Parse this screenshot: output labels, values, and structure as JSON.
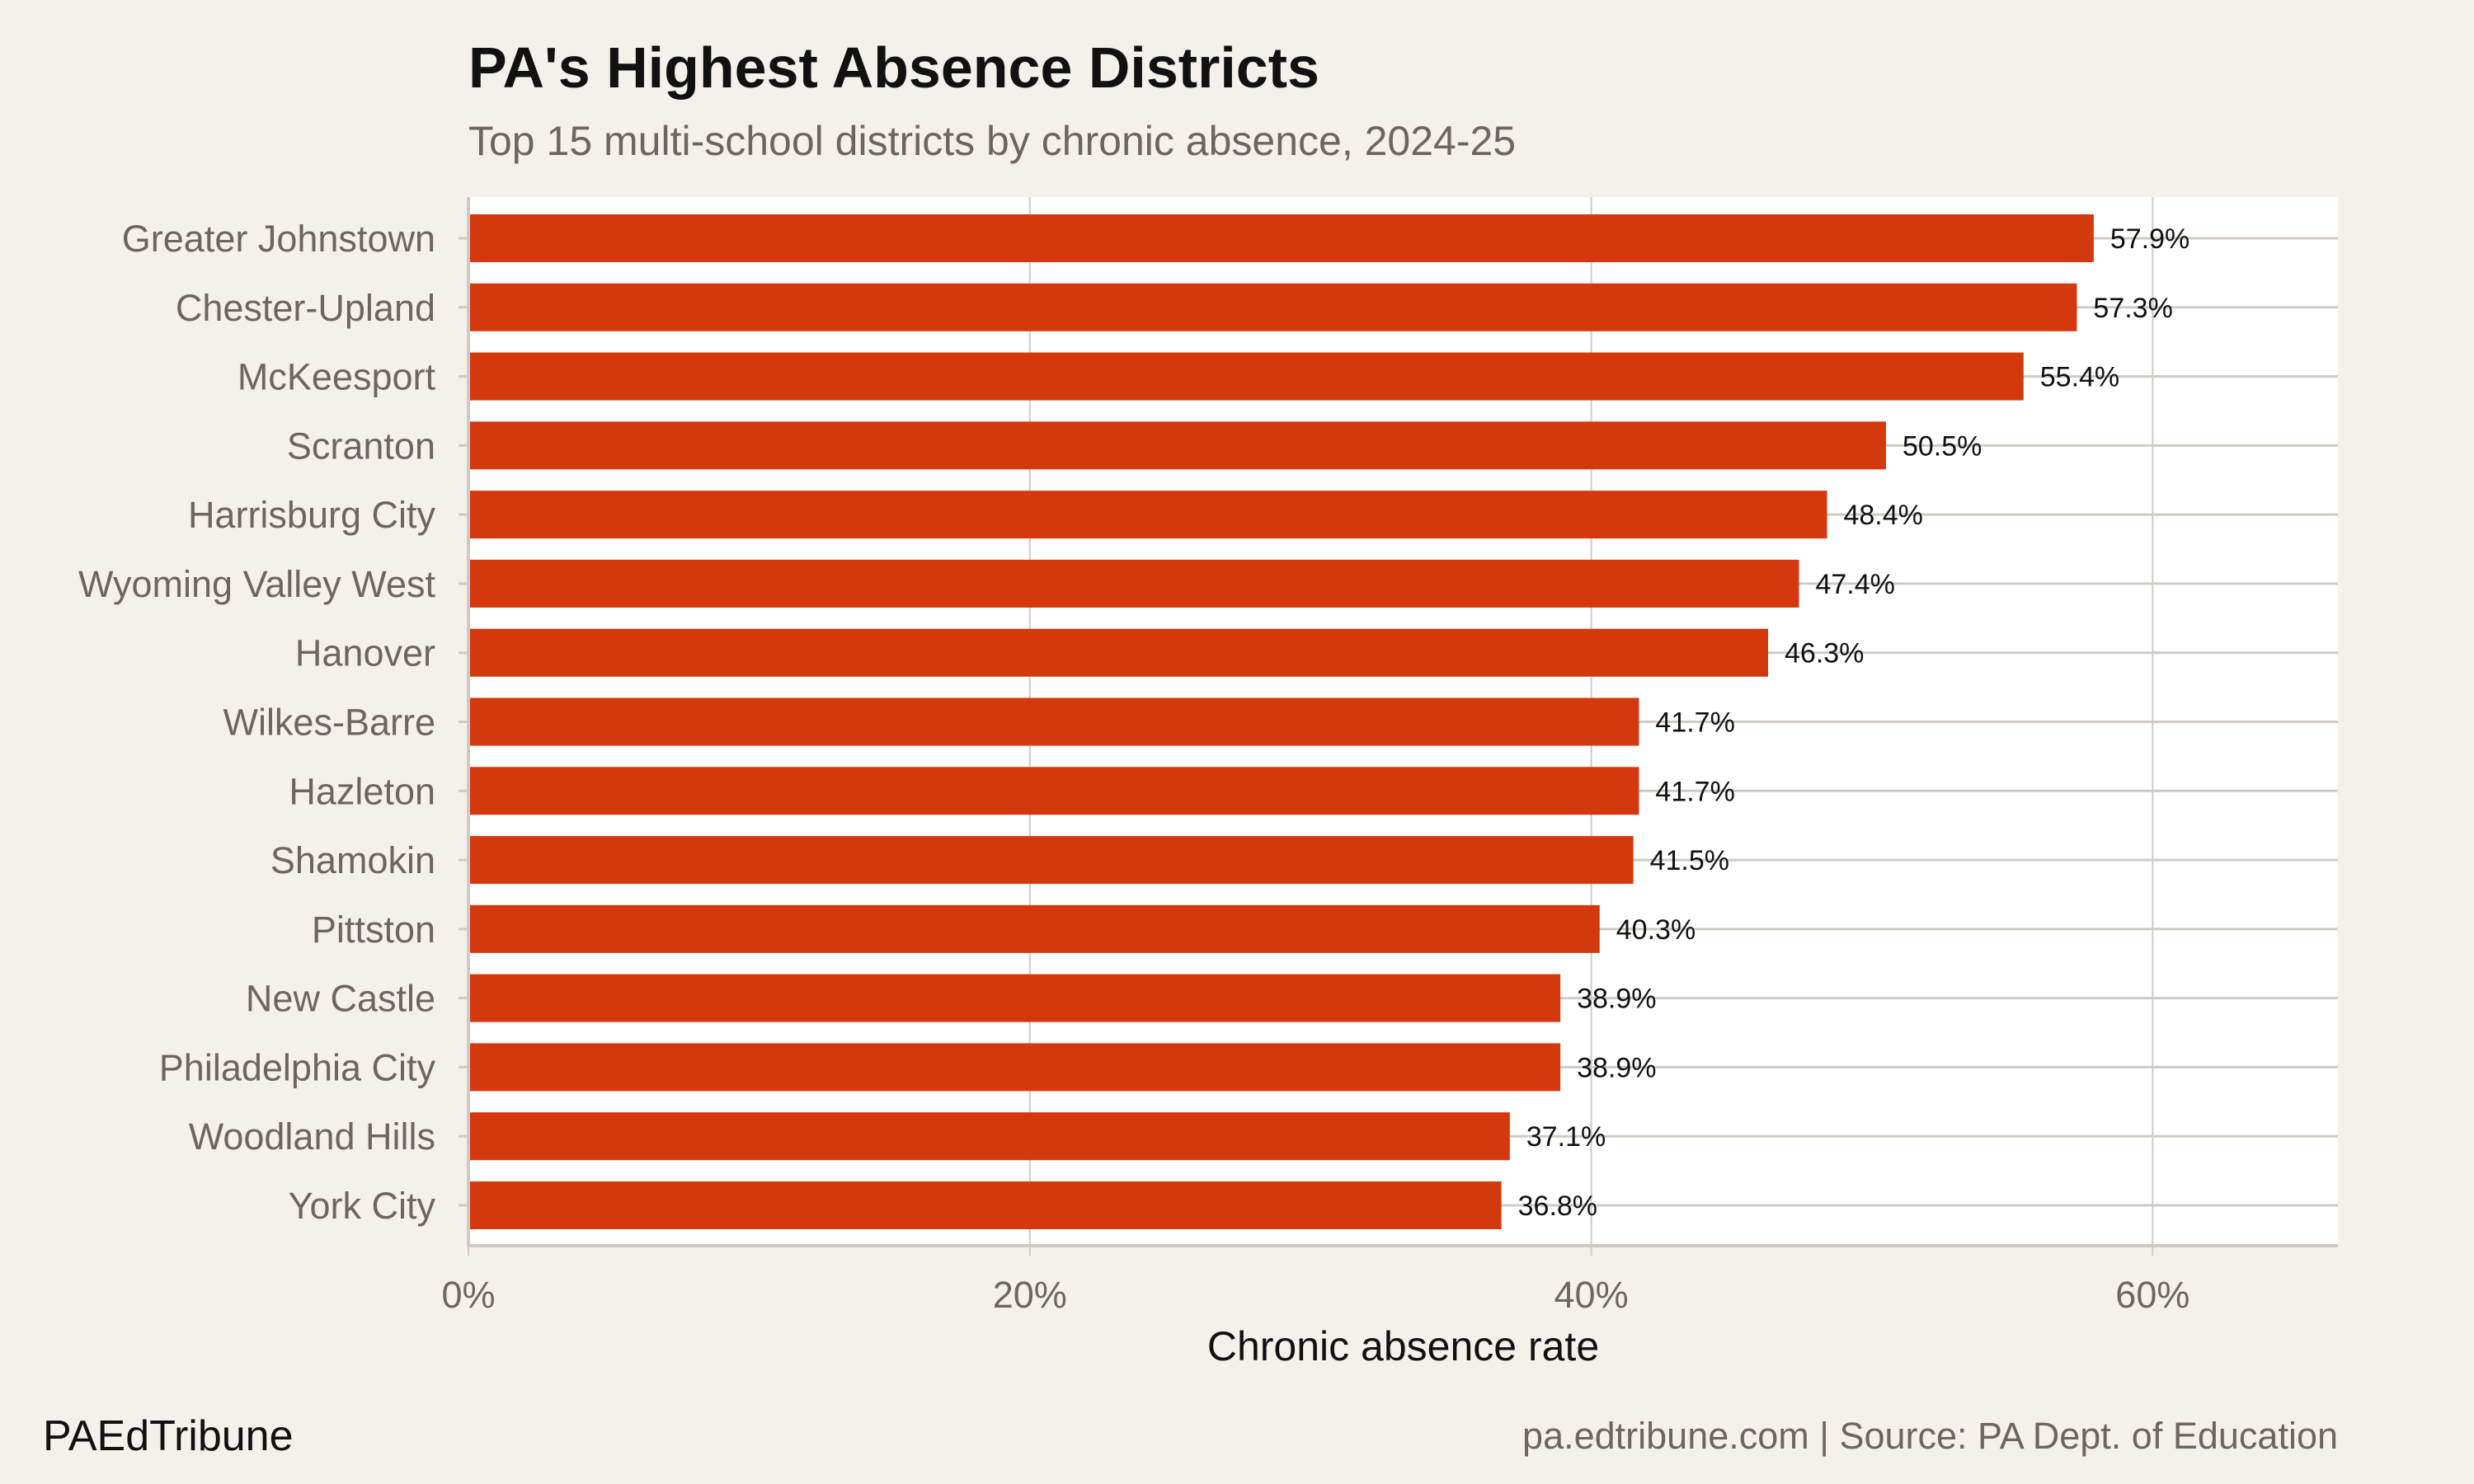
{
  "title": "PA's Highest Absence Districts",
  "subtitle": "Top 15 multi-school districts by chronic absence, 2024-25",
  "footer": {
    "brand": "PAEdTribune",
    "source": "pa.edtribune.com | Source: PA Dept. of Education"
  },
  "colors": {
    "bar": "#d4380d",
    "background": "#f4f1ec",
    "panel": "#ffffff",
    "grid": "#cfcbc4"
  },
  "chart_data": {
    "type": "bar",
    "orientation": "horizontal",
    "categories": [
      "Greater Johnstown",
      "Chester-Upland",
      "McKeesport",
      "Scranton",
      "Harrisburg City",
      "Wyoming Valley West",
      "Hanover",
      "Wilkes-Barre",
      "Hazleton",
      "Shamokin",
      "Pittston",
      "New Castle",
      "Philadelphia City",
      "Woodland Hills",
      "York City"
    ],
    "values": [
      57.9,
      57.3,
      55.4,
      50.5,
      48.4,
      47.4,
      46.3,
      41.7,
      41.7,
      41.5,
      40.3,
      38.9,
      38.9,
      37.1,
      36.8
    ],
    "data_labels": [
      "57.9%",
      "57.3%",
      "55.4%",
      "50.5%",
      "48.4%",
      "47.4%",
      "46.3%",
      "41.7%",
      "41.7%",
      "41.5%",
      "40.3%",
      "38.9%",
      "38.9%",
      "37.1%",
      "36.8%"
    ],
    "xlabel": "Chronic absence rate",
    "ylabel": "",
    "xlim": [
      0,
      66.6
    ],
    "xticks": [
      0,
      20,
      40,
      60
    ],
    "xtick_labels": [
      "0%",
      "20%",
      "40%",
      "60%"
    ],
    "grid": true,
    "legend": "none"
  }
}
